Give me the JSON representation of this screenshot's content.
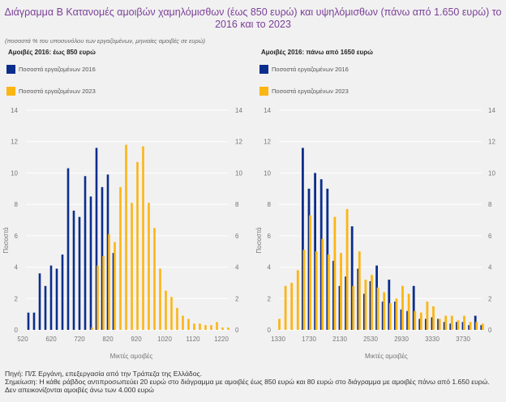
{
  "title": "Διάγραμμα Β Κατανομές αμοιβών χαμηλόμισθων (έως 850 ευρώ) και υψηλόμισθων (πάνω από 1.650 ευρώ) το 2016 και το 2023",
  "subtitle": "(ποσοστά % του υποσυνόλου των εργαζομένων, μηνιαίες αμοιβές σε ευρώ)",
  "footer": {
    "source": "Πηγή: Π/Σ Εργάνη, επεξεργασία από την Τράπεζα της Ελλάδος.",
    "note": "Σημείωση: Η κάθε ράβδος αντιπροσωπεύει 20 ευρώ στο διάγραμμα με αμοιβές έως 850 ευρώ και 80 ευρώ στο διάγραμμα με αμοιβές πάνω από 1.650 ευρώ. Δεν απεικονίζονται αμοιβές άνω των 4.000 ευρώ"
  },
  "colors": {
    "series2016": "#0b2d8c",
    "series2023": "#fbb514",
    "title": "#7b3f98"
  },
  "chart_data": [
    {
      "type": "bar",
      "panel_title": "Αμοιβές 2016: έως 850 ευρώ",
      "xlabel": "Μικτές αμοιβές",
      "ylabel": "Ποσοστά",
      "ylim": [
        0,
        14
      ],
      "yticks": [
        0,
        2,
        4,
        6,
        8,
        10,
        12,
        14
      ],
      "xlim": [
        520,
        1240
      ],
      "xticks": [
        520,
        620,
        720,
        820,
        920,
        1020,
        1120,
        1220
      ],
      "bin_width": 20,
      "grid": true,
      "legend_position": "top-left",
      "series": [
        {
          "name": "Ποσοστά εργαζομένων 2016",
          "x": [
            540,
            560,
            580,
            600,
            620,
            640,
            660,
            680,
            700,
            720,
            740,
            760,
            780,
            800,
            820,
            840
          ],
          "values": [
            1.1,
            1.1,
            3.6,
            2.8,
            4.1,
            3.9,
            4.8,
            10.3,
            7.6,
            7.2,
            9.8,
            8.5,
            11.6,
            9.1,
            9.9,
            4.9
          ]
        },
        {
          "name": "Ποσοστά εργαζομένων 2023",
          "x": [
            760,
            780,
            800,
            820,
            840,
            860,
            880,
            900,
            920,
            940,
            960,
            980,
            1000,
            1020,
            1040,
            1060,
            1080,
            1100,
            1120,
            1140,
            1160,
            1180,
            1200,
            1220,
            1240
          ],
          "values": [
            0.15,
            4.1,
            4.7,
            6.1,
            5.6,
            9.1,
            11.8,
            8.1,
            10.7,
            11.7,
            8.1,
            6.5,
            3.9,
            2.5,
            2.1,
            1.4,
            0.9,
            0.7,
            0.4,
            0.4,
            0.3,
            0.3,
            0.5,
            0.15,
            0.15
          ]
        }
      ]
    },
    {
      "type": "bar",
      "panel_title": "Αμοιβές 2016: πάνω από 1650 ευρώ",
      "xlabel": "Μικτές αμοιβές",
      "ylabel": "Ποσοστά",
      "ylim": [
        0,
        14
      ],
      "yticks": [
        0,
        2,
        4,
        6,
        8,
        10,
        12,
        14
      ],
      "xlim": [
        1330,
        3970
      ],
      "xticks": [
        1330,
        1730,
        2130,
        2530,
        2930,
        3330,
        3730
      ],
      "bin_width": 80,
      "grid": true,
      "legend_position": "top-left",
      "series": [
        {
          "name": "Ποσοστά εργαζομένων 2016",
          "x": [
            1650,
            1730,
            1810,
            1890,
            1970,
            2050,
            2130,
            2210,
            2290,
            2370,
            2450,
            2530,
            2610,
            2690,
            2770,
            2850,
            2930,
            3010,
            3090,
            3170,
            3250,
            3330,
            3410,
            3490,
            3570,
            3650,
            3730,
            3810,
            3890,
            3970
          ],
          "values": [
            11.6,
            9.0,
            10.0,
            9.6,
            9.0,
            4.4,
            2.8,
            3.4,
            6.6,
            3.9,
            2.3,
            3.1,
            4.1,
            1.8,
            3.2,
            1.8,
            1.3,
            1.2,
            2.8,
            0.7,
            0.7,
            0.8,
            0.7,
            0.5,
            0.4,
            0.5,
            0.5,
            0.3,
            0.9,
            0.3
          ]
        },
        {
          "name": "Ποσοστά εργαζομένων 2023",
          "x": [
            1330,
            1410,
            1490,
            1570,
            1650,
            1730,
            1810,
            1890,
            1970,
            2050,
            2130,
            2210,
            2290,
            2370,
            2450,
            2530,
            2610,
            2690,
            2770,
            2850,
            2930,
            3010,
            3090,
            3170,
            3250,
            3330,
            3410,
            3490,
            3570,
            3650,
            3730,
            3810,
            3890,
            3970
          ],
          "values": [
            0.7,
            2.8,
            3.0,
            3.8,
            5.1,
            7.3,
            5.0,
            5.8,
            4.8,
            7.2,
            4.9,
            7.7,
            2.8,
            5.0,
            3.2,
            3.5,
            2.7,
            2.4,
            1.7,
            2.0,
            2.8,
            2.3,
            1.2,
            1.1,
            1.8,
            1.5,
            0.7,
            0.9,
            0.9,
            0.6,
            0.9,
            0.5,
            0.5,
            0.4
          ]
        }
      ]
    }
  ]
}
